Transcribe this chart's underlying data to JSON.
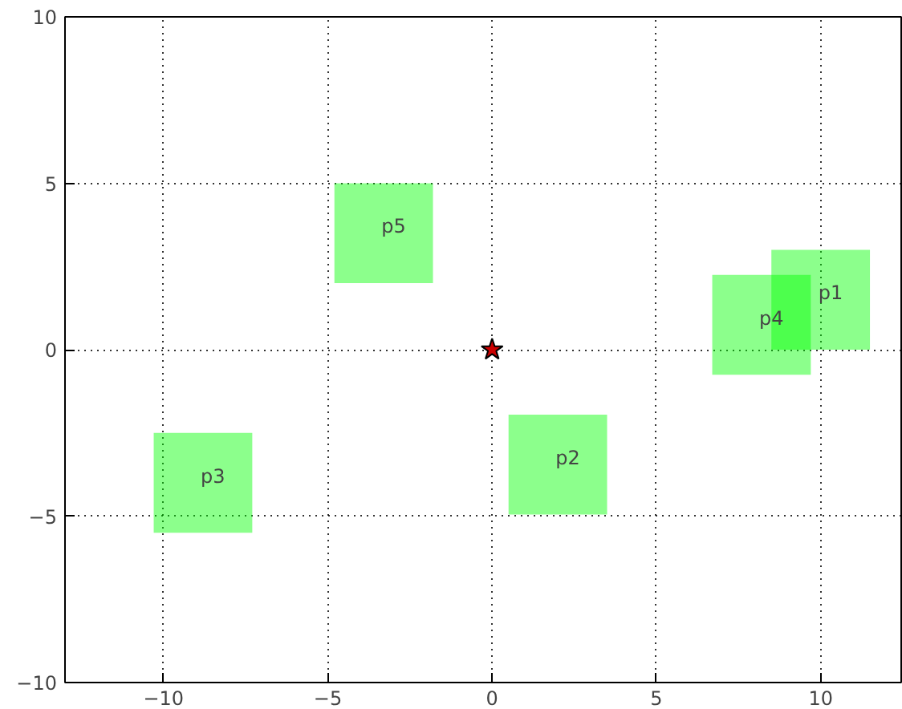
{
  "chart_data": {
    "type": "bar",
    "xlim": [
      -13,
      12.5
    ],
    "ylim": [
      -10,
      10
    ],
    "xticks": [
      -10,
      -5,
      0,
      5,
      10
    ],
    "yticks": [
      -10,
      -5,
      0,
      5,
      10
    ],
    "grid": true,
    "series": [
      {
        "color": "#00ff00",
        "x": [
          -8.8,
          -3.3,
          2,
          8.2,
          10
        ],
        "base": [
          -5.5,
          2,
          -4.95,
          -0.75,
          0
        ],
        "values": [
          3,
          3,
          3,
          3,
          3
        ],
        "value_labels": [
          "p3",
          "p5",
          "p2",
          "p4",
          "p1"
        ]
      },
      {
        "type": "scatter",
        "color": "#cc0000",
        "marker": "star",
        "x": [
          0
        ],
        "values": [
          0
        ]
      }
    ]
  }
}
